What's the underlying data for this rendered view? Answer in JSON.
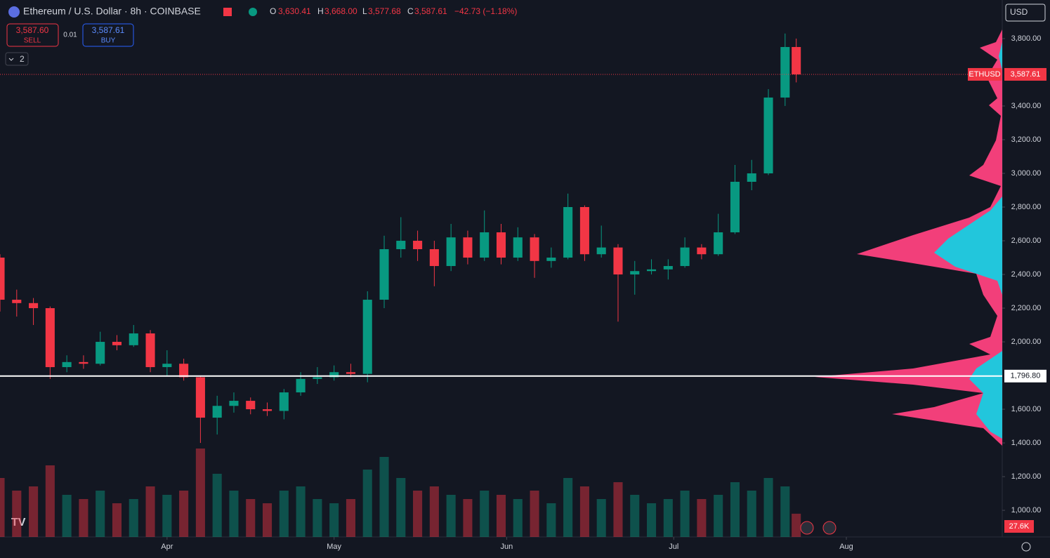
{
  "header": {
    "symbol": "Ethereum / U.S. Dollar · 8h · COINBASE",
    "o_label": "O",
    "o": "3,630.41",
    "h_label": "H",
    "h": "3,668.00",
    "l_label": "L",
    "l": "3,577.68",
    "c_label": "C",
    "c": "3,587.61",
    "change": "−42.73 (−1.18%)"
  },
  "trade": {
    "sell_price": "3,587.60",
    "sell": "SELL",
    "spread": "0.01",
    "buy_price": "3,587.61",
    "buy": "BUY",
    "indicators": "2"
  },
  "currency": "USD",
  "chart_data": {
    "type": "candlestick",
    "symbol_tag": "ETHUSD",
    "current_price": {
      "value": 3587.61,
      "label": "3,587.61"
    },
    "horizontal_line": {
      "value": 1796.8,
      "label": "1,796.80"
    },
    "volume_label": "27.6K",
    "up_color": "#089981",
    "down_color": "#f23645",
    "xlim": [
      0,
      180
    ],
    "xticks": [
      {
        "value": 30,
        "label": "Apr"
      },
      {
        "value": 60,
        "label": "May"
      },
      {
        "value": 91,
        "label": "Jun"
      },
      {
        "value": 121,
        "label": "Jul"
      },
      {
        "value": 152,
        "label": "Aug"
      }
    ],
    "ylim": [
      842,
      4029
    ],
    "yticks": [
      {
        "value": 1000,
        "label": "1,000.00"
      },
      {
        "value": 1200,
        "label": "1,200.00"
      },
      {
        "value": 1400,
        "label": "1,400.00"
      },
      {
        "value": 1600,
        "label": "1,600.00"
      },
      {
        "value": 2000,
        "label": "2,000.00"
      },
      {
        "value": 2200,
        "label": "2,200.00"
      },
      {
        "value": 2400,
        "label": "2,400.00"
      },
      {
        "value": 2600,
        "label": "2,600.00"
      },
      {
        "value": 2800,
        "label": "2,800.00"
      },
      {
        "value": 3000,
        "label": "3,000.00"
      },
      {
        "value": 3200,
        "label": "3,200.00"
      },
      {
        "value": 3400,
        "label": "3,400.00"
      },
      {
        "value": 3800,
        "label": "3,800.00"
      }
    ],
    "x": [
      0,
      3,
      6,
      9,
      12,
      15,
      18,
      21,
      24,
      27,
      30,
      33,
      36,
      39,
      42,
      45,
      48,
      51,
      54,
      57,
      60,
      63,
      66,
      69,
      72,
      75,
      78,
      81,
      84,
      87,
      90,
      93,
      96,
      99,
      102,
      105,
      108,
      111,
      114,
      117,
      120,
      123,
      126,
      129,
      132,
      135,
      138,
      141,
      143
    ],
    "open": [
      2500,
      2250,
      2230,
      2200,
      1850,
      1880,
      1870,
      2000,
      1980,
      2050,
      1850,
      1870,
      1790,
      1550,
      1620,
      1650,
      1600,
      1590,
      1700,
      1780,
      1790,
      1820,
      1810,
      2250,
      2550,
      2600,
      2550,
      2450,
      2620,
      2500,
      2650,
      2500,
      2620,
      2480,
      2500,
      2800,
      2520,
      2560,
      2400,
      2420,
      2430,
      2450,
      2560,
      2520,
      2650,
      2950,
      3000,
      3450,
      3750
    ],
    "high": [
      2520,
      2310,
      2260,
      2210,
      1920,
      1920,
      2060,
      2040,
      2100,
      2070,
      1950,
      1900,
      1800,
      1680,
      1700,
      1670,
      1640,
      1720,
      1820,
      1850,
      1860,
      1870,
      2300,
      2630,
      2740,
      2660,
      2600,
      2700,
      2660,
      2780,
      2700,
      2680,
      2640,
      2560,
      2880,
      2810,
      2690,
      2580,
      2480,
      2490,
      2490,
      2620,
      2580,
      2760,
      3050,
      3080,
      3500,
      3830,
      3800
    ],
    "low": [
      2180,
      2150,
      2100,
      1780,
      1820,
      1840,
      1860,
      1950,
      1970,
      1820,
      1800,
      1770,
      1400,
      1450,
      1580,
      1570,
      1560,
      1540,
      1680,
      1750,
      1770,
      1790,
      1760,
      2200,
      2500,
      2480,
      2330,
      2420,
      2460,
      2480,
      2460,
      2480,
      2380,
      2440,
      2490,
      2480,
      2500,
      2120,
      2280,
      2400,
      2370,
      2440,
      2490,
      2510,
      2640,
      2900,
      2990,
      3400,
      3540
    ],
    "close": [
      2250,
      2230,
      2200,
      1850,
      1880,
      1870,
      2000,
      1980,
      2050,
      1850,
      1870,
      1790,
      1550,
      1620,
      1650,
      1600,
      1590,
      1700,
      1780,
      1790,
      1820,
      1810,
      2250,
      2550,
      2600,
      2550,
      2450,
      2620,
      2500,
      2650,
      2500,
      2620,
      2480,
      2500,
      2800,
      2520,
      2560,
      2400,
      2420,
      2430,
      2450,
      2560,
      2520,
      2650,
      2950,
      3000,
      3450,
      3750,
      3587.61
    ],
    "volume": [
      70,
      55,
      60,
      85,
      50,
      45,
      55,
      40,
      45,
      60,
      50,
      55,
      105,
      75,
      55,
      45,
      40,
      55,
      60,
      45,
      40,
      45,
      80,
      95,
      70,
      55,
      60,
      50,
      45,
      55,
      50,
      45,
      55,
      40,
      70,
      60,
      45,
      65,
      50,
      40,
      45,
      55,
      45,
      50,
      65,
      55,
      70,
      60,
      27.6
    ]
  }
}
